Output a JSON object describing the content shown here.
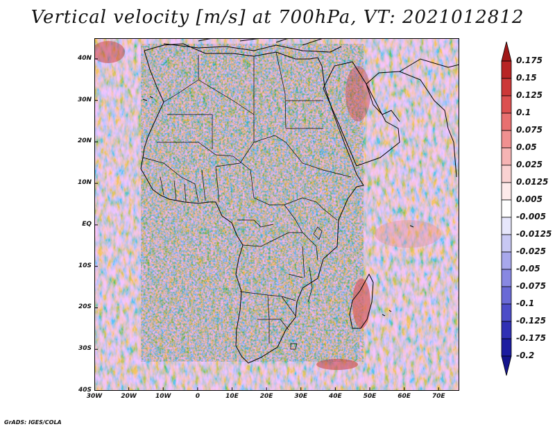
{
  "title": "Vertical velocity [m/s] at 700hPa, VT: 2021012812",
  "credit": "GrADS: IGES/COLA",
  "map": {
    "region": "Africa and surrounding oceans",
    "lon_range": [
      -30,
      76
    ],
    "lat_range": [
      -40,
      45
    ],
    "lat_ticks": [
      {
        "label": "40N",
        "value": 40
      },
      {
        "label": "30N",
        "value": 30
      },
      {
        "label": "20N",
        "value": 20
      },
      {
        "label": "10N",
        "value": 10
      },
      {
        "label": "EQ",
        "value": 0
      },
      {
        "label": "10S",
        "value": -10
      },
      {
        "label": "20S",
        "value": -20
      },
      {
        "label": "30S",
        "value": -30
      },
      {
        "label": "40S",
        "value": -40
      }
    ],
    "lon_ticks": [
      {
        "label": "30W",
        "value": -30
      },
      {
        "label": "20W",
        "value": -20
      },
      {
        "label": "10W",
        "value": -10
      },
      {
        "label": "0",
        "value": 0
      },
      {
        "label": "10E",
        "value": 10
      },
      {
        "label": "20E",
        "value": 20
      },
      {
        "label": "30E",
        "value": 30
      },
      {
        "label": "40E",
        "value": 40
      },
      {
        "label": "50E",
        "value": 50
      },
      {
        "label": "60E",
        "value": 60
      },
      {
        "label": "70E",
        "value": 70
      }
    ]
  },
  "colorbar": {
    "levels": [
      {
        "label": "0.175",
        "color": "#a01818"
      },
      {
        "label": "0.15",
        "color": "#b82424"
      },
      {
        "label": "0.125",
        "color": "#cc3838"
      },
      {
        "label": "0.1",
        "color": "#dc5050"
      },
      {
        "label": "0.075",
        "color": "#e87070"
      },
      {
        "label": "0.05",
        "color": "#f09090"
      },
      {
        "label": "0.025",
        "color": "#f6b4b4"
      },
      {
        "label": "0.0125",
        "color": "#fad2d2"
      },
      {
        "label": "0.005",
        "color": "#fdeaea"
      },
      {
        "label": "-0.005",
        "color": "#ffffff"
      },
      {
        "label": "-0.0125",
        "color": "#e6e6fb"
      },
      {
        "label": "-0.025",
        "color": "#c8c8f3"
      },
      {
        "label": "-0.05",
        "color": "#a8a8ec"
      },
      {
        "label": "-0.075",
        "color": "#8888e2"
      },
      {
        "label": "-0.1",
        "color": "#6a6ad6"
      },
      {
        "label": "-0.125",
        "color": "#4c4cc8"
      },
      {
        "label": "-0.175",
        "color": "#3030b4"
      },
      {
        "label": "-0.2",
        "color": "#1c1ca0"
      }
    ],
    "bottom_color": "#14148c"
  }
}
